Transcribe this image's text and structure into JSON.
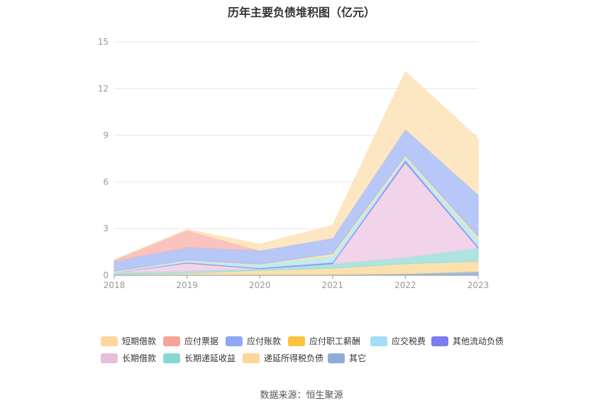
{
  "source_label": "数据来源：恒生聚源",
  "chart_data": {
    "type": "area",
    "stacked": true,
    "title": "历年主要负债堆积图（亿元）",
    "x": [
      "2018",
      "2019",
      "2020",
      "2021",
      "2022",
      "2023"
    ],
    "ylim": [
      0,
      15
    ],
    "yticks": [
      0,
      3,
      6,
      9,
      12,
      15
    ],
    "grid": true,
    "legend_position": "bottom",
    "series": [
      {
        "name": "其它",
        "color": "#8eb0dc",
        "values": [
          0.01,
          0.03,
          0.02,
          0.05,
          0.1,
          0.25
        ]
      },
      {
        "name": "递延所得税负债",
        "color": "#fcdba0",
        "values": [
          0.05,
          0.1,
          0.3,
          0.4,
          0.65,
          0.65
        ]
      },
      {
        "name": "长期递延收益",
        "color": "#9fdedb",
        "values": [
          0.1,
          0.15,
          0.1,
          0.3,
          0.4,
          0.85
        ]
      },
      {
        "name": "长期借款",
        "color": "#efcde5",
        "values": [
          0.0,
          0.5,
          0.0,
          0.0,
          6.1,
          0.0
        ]
      },
      {
        "name": "其他流动负债",
        "color": "#8b8cf0",
        "values": [
          0.0,
          0.05,
          0.05,
          0.08,
          0.15,
          0.1
        ]
      },
      {
        "name": "应交税费",
        "color": "#b5e6f4",
        "values": [
          0.05,
          0.1,
          0.2,
          0.4,
          0.2,
          0.5
        ]
      },
      {
        "name": "应付职工薪酬",
        "color": "#fde3a0",
        "values": [
          0.05,
          0.05,
          0.05,
          0.15,
          0.1,
          0.15
        ]
      },
      {
        "name": "应付账款",
        "color": "#a9bdf7",
        "values": [
          0.64,
          0.82,
          0.88,
          1.02,
          1.7,
          2.7
        ]
      },
      {
        "name": "应付票据",
        "color": "#f9b9b1",
        "values": [
          0.1,
          1.1,
          0.0,
          0.0,
          0.0,
          0.0
        ]
      },
      {
        "name": "短期借款",
        "color": "#fde3b7",
        "values": [
          0.0,
          0.05,
          0.4,
          0.8,
          3.7,
          3.6
        ]
      }
    ],
    "legend": [
      {
        "name": "短期借款",
        "color": "#fdd79b"
      },
      {
        "name": "应付票据",
        "color": "#f6a497"
      },
      {
        "name": "应付账款",
        "color": "#8ea8f5"
      },
      {
        "name": "应付职工薪酬",
        "color": "#fbc33f"
      },
      {
        "name": "应交税费",
        "color": "#a3dcf6"
      },
      {
        "name": "其他流动负债",
        "color": "#7a7cf0"
      },
      {
        "name": "长期借款",
        "color": "#e6bedd"
      },
      {
        "name": "长期递延收益",
        "color": "#87d8d3"
      },
      {
        "name": "递延所得税负债",
        "color": "#fdd69c"
      },
      {
        "name": "其它",
        "color": "#8eaad8"
      }
    ]
  }
}
